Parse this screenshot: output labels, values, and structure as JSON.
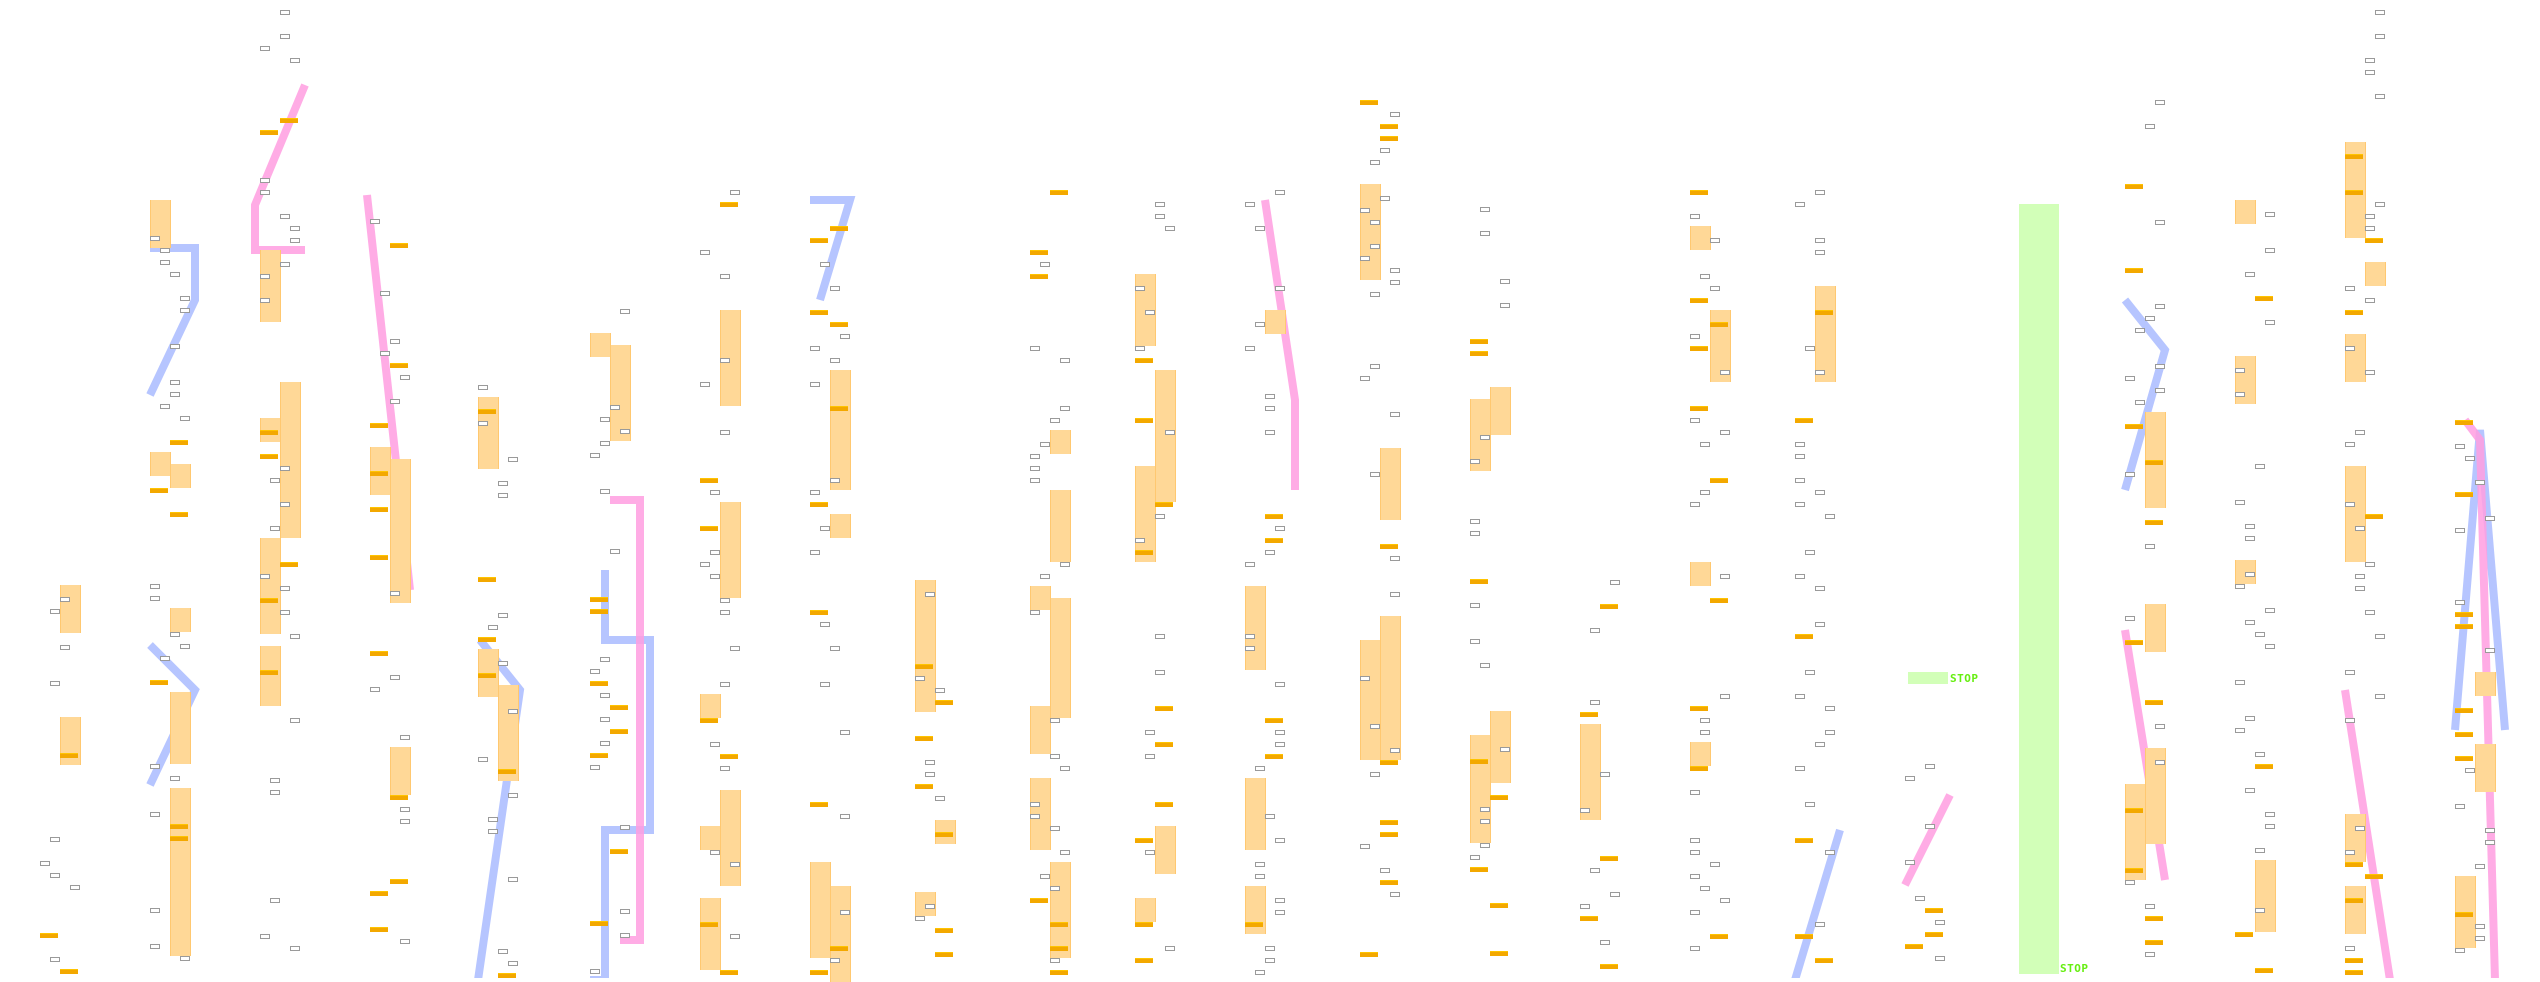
{
  "chart_view": {
    "stop_markers": [
      {
        "label": "STOP"
      },
      {
        "label": "STOP"
      }
    ],
    "colors": {
      "note_outline": "#9a9a9a",
      "hold_body": "#ffd897",
      "tap_bar": "#f3a800",
      "slide_blue": "#a9bbff",
      "slide_pink": "#ff9ee0",
      "stop_region": "#d2ffb8",
      "stop_text": "#66ee11"
    }
  }
}
